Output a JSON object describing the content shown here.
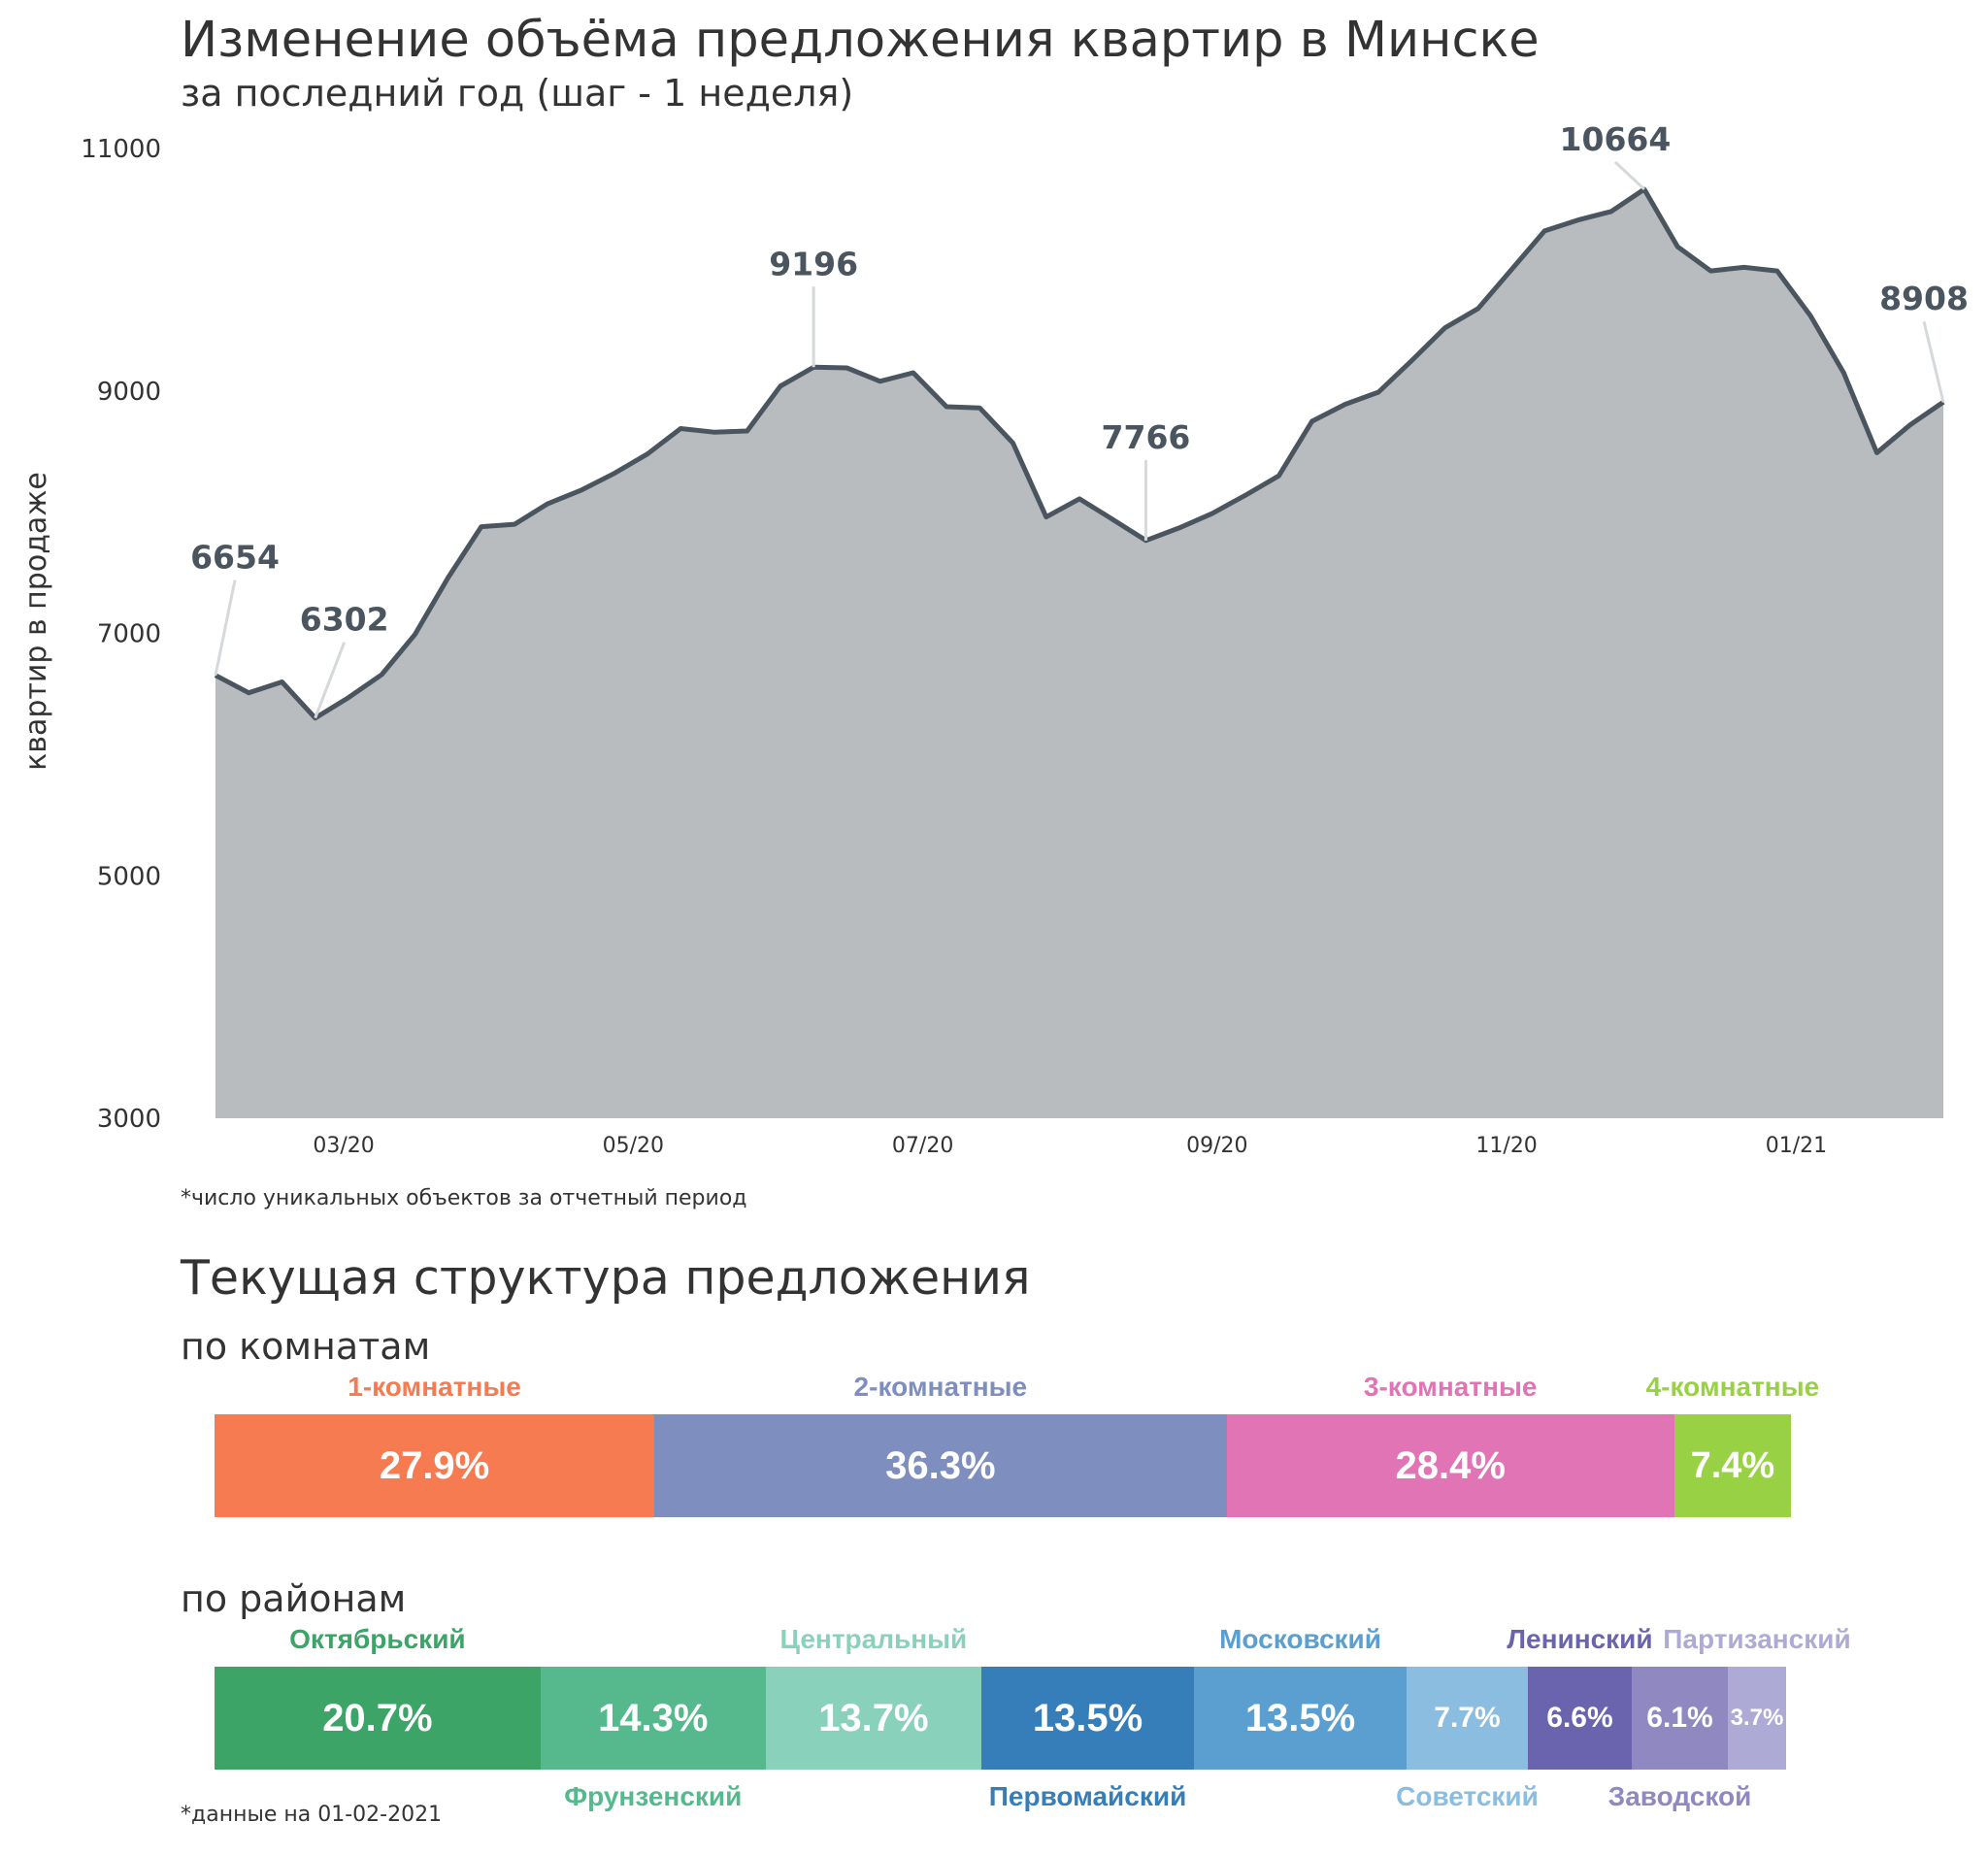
{
  "title": "Изменение объёма предложения квартир в Минске",
  "subtitle": "за последний год (шаг - 1 неделя)",
  "footnote_chart": "*число уникальных объектов за отчетный период",
  "section_title": "Текущая структура предложения",
  "rooms_heading": "по комнатам",
  "districts_heading": "по районам",
  "footnote_date": "*данные на 01-02-2021",
  "chart_data": {
    "type": "area",
    "title": "Изменение объёма предложения квартир в Минске",
    "subtitle": "за последний год (шаг - 1 неделя)",
    "ylabel": "квартир в продаже",
    "ylim": [
      3000,
      11000
    ],
    "yticks": [
      3000,
      5000,
      7000,
      9000,
      11000
    ],
    "xlim": [
      "2020-02-03",
      "2021-02-01"
    ],
    "xticks": [
      {
        "date": "2020-03-01",
        "label": "03/20"
      },
      {
        "date": "2020-05-01",
        "label": "05/20"
      },
      {
        "date": "2020-07-01",
        "label": "07/20"
      },
      {
        "date": "2020-09-01",
        "label": "09/20"
      },
      {
        "date": "2020-11-01",
        "label": "11/20"
      },
      {
        "date": "2021-01-01",
        "label": "01/21"
      }
    ],
    "grid": false,
    "x": [
      "2020-02-03",
      "2020-02-10",
      "2020-02-17",
      "2020-02-24",
      "2020-03-02",
      "2020-03-09",
      "2020-03-16",
      "2020-03-23",
      "2020-03-30",
      "2020-04-06",
      "2020-04-13",
      "2020-04-20",
      "2020-04-27",
      "2020-05-04",
      "2020-05-11",
      "2020-05-18",
      "2020-05-25",
      "2020-06-01",
      "2020-06-08",
      "2020-06-15",
      "2020-06-22",
      "2020-06-29",
      "2020-07-06",
      "2020-07-13",
      "2020-07-20",
      "2020-07-27",
      "2020-08-03",
      "2020-08-10",
      "2020-08-17",
      "2020-08-24",
      "2020-08-31",
      "2020-09-07",
      "2020-09-14",
      "2020-09-21",
      "2020-09-28",
      "2020-10-05",
      "2020-10-12",
      "2020-10-19",
      "2020-10-26",
      "2020-11-02",
      "2020-11-09",
      "2020-11-16",
      "2020-11-23",
      "2020-11-30",
      "2020-12-07",
      "2020-12-14",
      "2020-12-21",
      "2020-12-28",
      "2021-01-04",
      "2021-01-11",
      "2021-01-18",
      "2021-01-25",
      "2021-02-01"
    ],
    "y": [
      6654,
      6510,
      6600,
      6302,
      6470,
      6660,
      6990,
      7460,
      7880,
      7900,
      8070,
      8180,
      8320,
      8480,
      8690,
      8660,
      8670,
      9040,
      9196,
      9190,
      9080,
      9150,
      8870,
      8860,
      8570,
      7960,
      8110,
      7940,
      7766,
      7870,
      7990,
      8140,
      8300,
      8750,
      8890,
      8990,
      9250,
      9520,
      9680,
      10000,
      10320,
      10410,
      10480,
      10664,
      10190,
      9990,
      10020,
      9990,
      9620,
      9150,
      8490,
      8720,
      8908
    ],
    "annotations": [
      {
        "date": "2020-02-03",
        "value": 6654,
        "label": "6654"
      },
      {
        "date": "2020-02-24",
        "value": 6302,
        "label": "6302"
      },
      {
        "date": "2020-06-08",
        "value": 9196,
        "label": "9196"
      },
      {
        "date": "2020-08-17",
        "value": 7766,
        "label": "7766"
      },
      {
        "date": "2020-11-30",
        "value": 10664,
        "label": "10664"
      },
      {
        "date": "2021-02-01",
        "value": 8908,
        "label": "8908"
      }
    ],
    "colors": {
      "line": "#4a5560",
      "fill": "#b8bcbf",
      "annotation": "#4a5560",
      "leader": "#d6d9db"
    }
  },
  "rooms": [
    {
      "name": "1-комнатные",
      "value": 27.9,
      "text": "27.9%",
      "color": "#f77b50",
      "label_color": "#f77b50"
    },
    {
      "name": "2-комнатные",
      "value": 36.3,
      "text": "36.3%",
      "color": "#7d8ebf",
      "label_color": "#7d8ebf"
    },
    {
      "name": "3-комнатные",
      "value": 28.4,
      "text": "28.4%",
      "color": "#e174b5",
      "label_color": "#e174b5"
    },
    {
      "name": "4-комнатные",
      "value": 7.4,
      "text": "7.4%",
      "color": "#99d144",
      "label_color": "#99d144"
    }
  ],
  "districts": [
    {
      "name": "Октябрьский",
      "value": 20.7,
      "text": "20.7%",
      "color": "#3ba466",
      "label_color": "#3ba466",
      "label_pos": "top"
    },
    {
      "name": "Фрунзенский",
      "value": 14.3,
      "text": "14.3%",
      "color": "#56b98e",
      "label_color": "#56b98e",
      "label_pos": "bottom"
    },
    {
      "name": "Центральный",
      "value": 13.7,
      "text": "13.7%",
      "color": "#8ad1bb",
      "label_color": "#8ad1bb",
      "label_pos": "top"
    },
    {
      "name": "Первомайский",
      "value": 13.5,
      "text": "13.5%",
      "color": "#357eb9",
      "label_color": "#357eb9",
      "label_pos": "bottom"
    },
    {
      "name": "Московский",
      "value": 13.5,
      "text": "13.5%",
      "color": "#5a9fcf",
      "label_color": "#5a9fcf",
      "label_pos": "top"
    },
    {
      "name": "Советский",
      "value": 7.7,
      "text": "7.7%",
      "color": "#8abddf",
      "label_color": "#8abddf",
      "label_pos": "bottom"
    },
    {
      "name": "Ленинский",
      "value": 6.6,
      "text": "6.6%",
      "color": "#6a63ad",
      "label_color": "#6a63ad",
      "label_pos": "top"
    },
    {
      "name": "Заводской",
      "value": 6.1,
      "text": "6.1%",
      "color": "#8f88c1",
      "label_color": "#8f88c1",
      "label_pos": "bottom"
    },
    {
      "name": "Партизанский",
      "value": 3.7,
      "text": "3.7%",
      "color": "#aeaad6",
      "label_color": "#aeaad6",
      "label_pos": "top"
    }
  ]
}
